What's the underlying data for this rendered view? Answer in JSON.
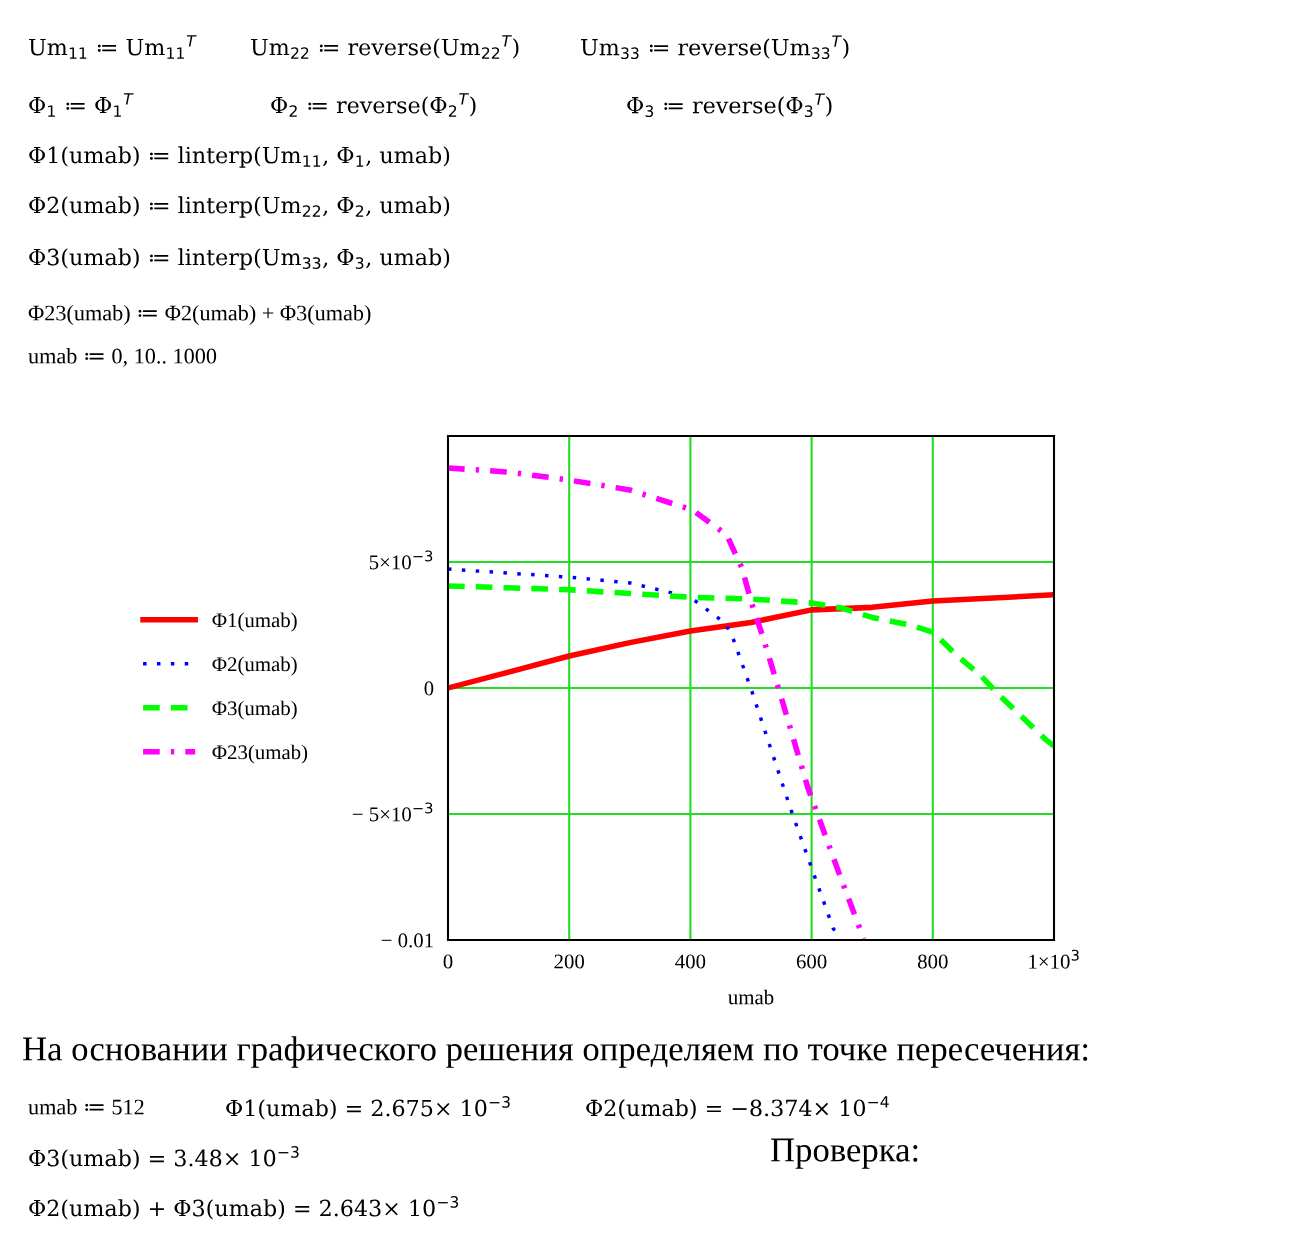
{
  "chart_data": {
    "type": "line",
    "xlabel": "umab",
    "xlim": [
      0,
      1000
    ],
    "xticks": [
      0,
      200,
      400,
      600,
      800,
      {
        "value": 1000,
        "label": "1×10$^{3}$"
      }
    ],
    "ylim": [
      -0.01,
      0.01
    ],
    "yticks": [
      {
        "value": -0.01,
        "label": "− 0.01"
      },
      {
        "value": -0.005,
        "label": "− 5×10$^{−3}$"
      },
      0,
      {
        "value": 0.005,
        "label": "5×10$^{−3}$"
      },
      {
        "value": 0.01,
        "label": null
      }
    ],
    "grid": true,
    "legend": "left",
    "series": [
      {
        "name": "Φ1(umab)",
        "color": "#ff0000",
        "line_style": "solid",
        "x": [
          0,
          100,
          200,
          300,
          400,
          500,
          600,
          700,
          800,
          900,
          1000
        ],
        "values": [
          0,
          0.00063,
          0.00127,
          0.0018,
          0.00226,
          0.0026,
          0.0031,
          0.0032,
          0.00345,
          0.00357,
          0.0037
        ]
      },
      {
        "name": "Φ2(umab)",
        "color": "#0000ff",
        "line_style": "dotted",
        "x": [
          0,
          200,
          300,
          400,
          457,
          470,
          493,
          501,
          566,
          600,
          636,
          642
        ],
        "values": [
          0.00472,
          0.0044,
          0.00417,
          0.0036,
          0.00258,
          0.002,
          0.00044,
          -0.0001,
          -0.00484,
          -0.00714,
          -0.00956,
          -0.00972
        ]
      },
      {
        "name": "Φ3(umab)",
        "color": "#00ff00",
        "line_style": "dashed",
        "x": [
          0,
          200,
          400,
          500,
          600,
          650,
          700,
          762,
          800,
          839,
          878,
          911,
          987,
          1000
        ],
        "values": [
          0.00405,
          0.0039,
          0.0036,
          0.00353,
          0.00337,
          0.00317,
          0.0028,
          0.0025,
          0.00222,
          0.00131,
          0.00052,
          -0.00032,
          -0.00206,
          -0.0023
        ]
      },
      {
        "name": "Φ23(umab)",
        "color": "#ff00ff",
        "line_style": "dashdot",
        "x": [
          0,
          100,
          200,
          300,
          404,
          460,
          485,
          501,
          520,
          554,
          594,
          647,
          686
        ],
        "values": [
          0.00873,
          0.00857,
          0.00825,
          0.00786,
          0.00706,
          0.00607,
          0.00476,
          0.00337,
          0.002,
          -0.00071,
          -0.00397,
          -0.00746,
          -0.00996
        ]
      }
    ],
    "annotations": [
      "Um$_{11}$ ≔ Um$_{11}$$^{T}$",
      "Um$_{22}$ ≔ reverse(Um$_{22}$$^{T}$)",
      "Um$_{33}$ ≔ reverse(Um$_{33}$$^{T}$)",
      "Φ$_{1}$ ≔ Φ$_{1}$$^{T}$",
      "Φ$_{2}$ ≔ reverse(Φ$_{2}$$^{T}$)",
      "Φ$_{3}$ ≔ reverse(Φ$_{3}$$^{T}$)",
      "Φ1(umab) ≔ linterp(Um$_{11}$, Φ$_{1}$, umab)",
      "Φ2(umab) ≔ linterp(Um$_{22}$, Φ$_{2}$, umab)",
      "Φ3(umab) ≔ linterp(Um$_{33}$, Φ$_{3}$, umab)",
      "Φ23(umab) ≔ Φ2(umab) + Φ3(umab)",
      "umab ≔ 0, 10.. 1000",
      "На основании графического решения определяем по точке пересечения:",
      "umab ≔ 512",
      "Φ1(umab) = 2.675× 10$^{−3}$",
      "Φ2(umab) = −8.374× 10$^{−4}$",
      "Φ3(umab) = 3.48× 10$^{−3}$",
      "Проверка:",
      "Φ2(umab) + Φ3(umab) = 2.643× 10$^{−3}$"
    ]
  }
}
